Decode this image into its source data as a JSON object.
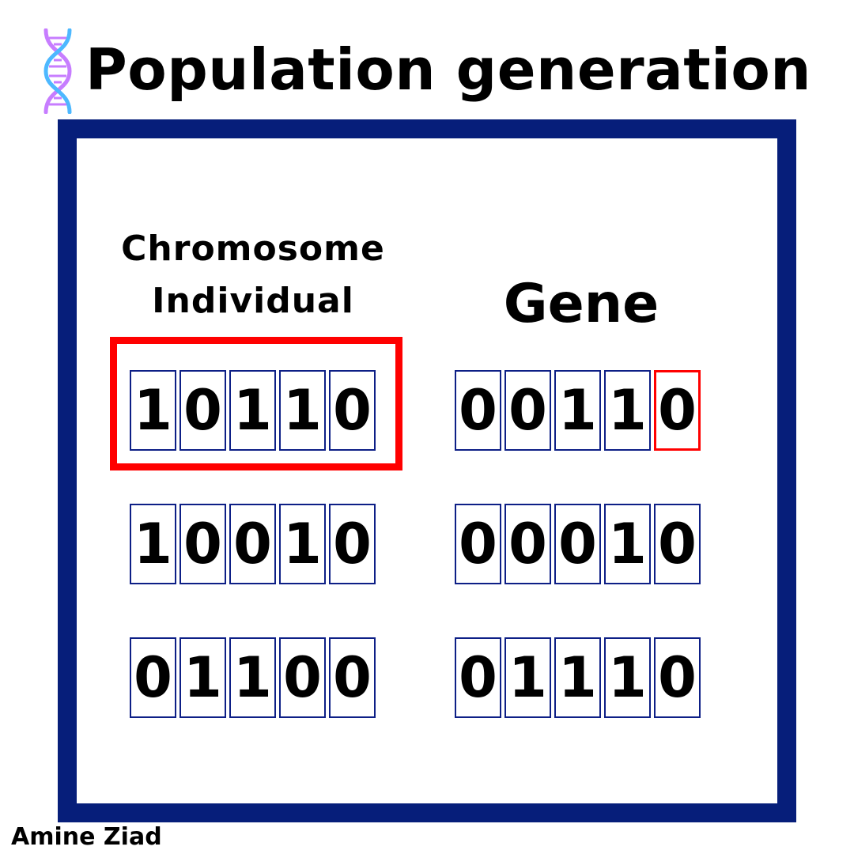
{
  "title": "Population generation",
  "labels": {
    "chromosome": "Chromosome",
    "individual": "Individual",
    "gene": "Gene"
  },
  "population": {
    "left": [
      [
        "1",
        "0",
        "1",
        "1",
        "0"
      ],
      [
        "1",
        "0",
        "0",
        "1",
        "0"
      ],
      [
        "0",
        "1",
        "1",
        "0",
        "0"
      ]
    ],
    "right": [
      [
        "0",
        "0",
        "1",
        "1",
        "0"
      ],
      [
        "0",
        "0",
        "0",
        "1",
        "0"
      ],
      [
        "0",
        "1",
        "1",
        "1",
        "0"
      ]
    ]
  },
  "highlights": {
    "chromosome": {
      "column": "left",
      "row": 0
    },
    "gene": {
      "column": "right",
      "row": 0,
      "bit": 4
    }
  },
  "colors": {
    "frame": "#061e7a",
    "cell_border": "#0d1f86",
    "highlight": "#ff0000",
    "dna_helix_a": "#c77dff",
    "dna_helix_b": "#4db8ff"
  },
  "icon": "dna-icon",
  "author": "Amine Ziad"
}
